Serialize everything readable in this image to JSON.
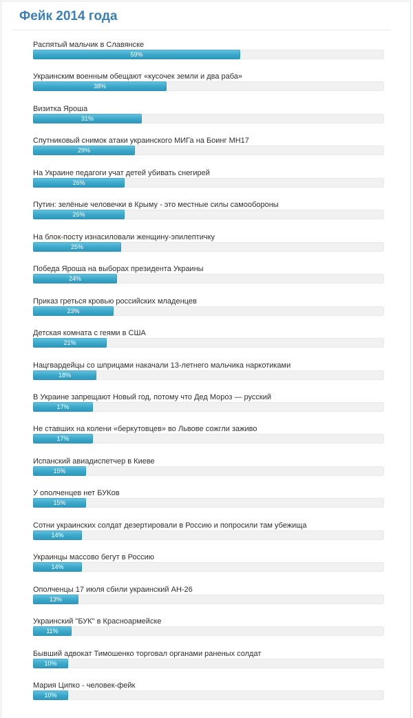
{
  "poll": {
    "title": "Фейк 2014 года"
  },
  "colors": {
    "title": "#3b7fb5",
    "bar_fill": "#3aa6c8",
    "bar_track": "#f1f1f1"
  },
  "chart_data": {
    "type": "bar",
    "orientation": "horizontal",
    "value_unit": "%",
    "xlim": [
      0,
      100
    ],
    "categories": [
      "Распятый мальчик в Славянске",
      "Украинским военным обещают «кусочек земли и два раба»",
      "Визитка Яроша",
      "Спутниковый снимок атаки украинского МИГа на Боинг МН17",
      "На Украине педагоги учат детей убивать снегирей",
      "Путин: зелёные человечки в Крыму - это местные силы самообороны",
      "На блок-посту изнасиловали женщину-эпилептичку",
      "Победа Яроша на выборах президента Украины",
      "Приказ греться кровью российских младенцев",
      "Детская комната с геями в США",
      "Нацгвардейцы со шприцами накачали 13-летнего мальчика наркотиками",
      "В Украине запрещают Новый год, потому что Дед Мороз — русский",
      "Не ставших на колени «беркутовцев» во Львове сожгли заживо",
      "Испанский авиадиспетчер в Киеве",
      "У ополченцев нет БУКов",
      "Сотни украинских солдат дезертировали в Россию и попросили там убежища",
      "Украинцы массово бегут в Россию",
      "Ополченцы 17 июля сбили украинский АН-26",
      "Украинский \"БУК\" в Красноармейске",
      "Бывший адвокат Тимошенко торговал органами раненых солдат",
      "Мария Ципко - человек-фейк"
    ],
    "values": [
      59,
      38,
      31,
      29,
      26,
      26,
      25,
      24,
      23,
      21,
      18,
      17,
      17,
      15,
      15,
      14,
      14,
      13,
      11,
      10,
      10
    ],
    "value_labels": [
      "59%",
      "38%",
      "31%",
      "29%",
      "26%",
      "26%",
      "25%",
      "24%",
      "23%",
      "21%",
      "18%",
      "17%",
      "17%",
      "15%",
      "15%",
      "14%",
      "14%",
      "13%",
      "11%",
      "10%",
      "10%"
    ]
  }
}
